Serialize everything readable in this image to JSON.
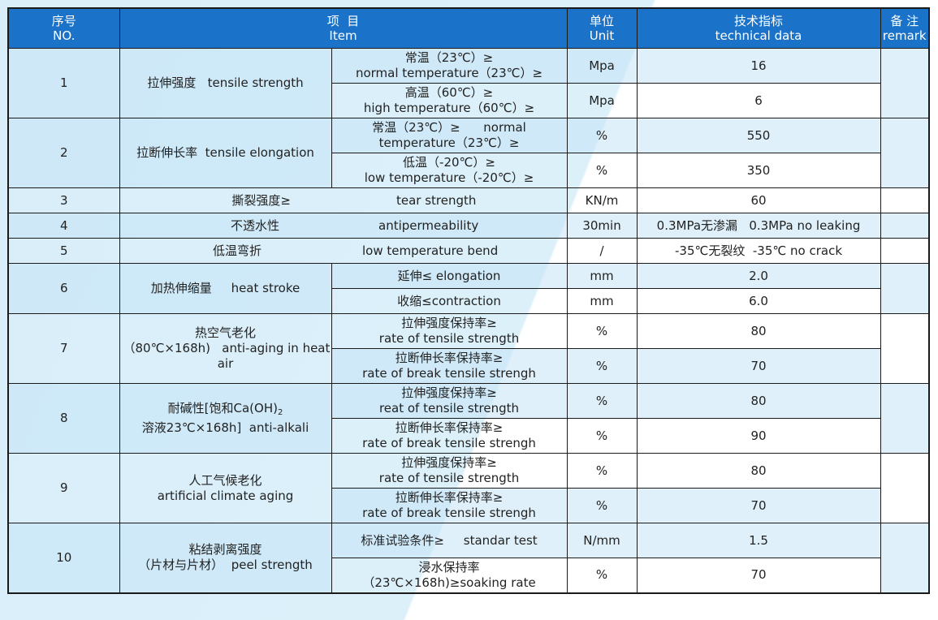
{
  "header": {
    "no_cn": "序号",
    "no_en": "NO.",
    "item_cn": "项  目",
    "item_en": "Item",
    "unit_cn": "单位",
    "unit_en": "Unit",
    "tech_cn": "技术指标",
    "tech_en": "technical data",
    "remark_cn": "备 注",
    "remark_en": "remark"
  },
  "rows": [
    {
      "no": "1",
      "item": "拉伸强度   tensile strength",
      "sub1": "常温（23℃）≥",
      "sub1b": "normal temperature（23℃）≥",
      "unit1": "Mpa",
      "val1": "16",
      "sub2": "高温（60℃）≥",
      "sub2b": "high temperature（60℃）≥",
      "unit2": "Mpa",
      "val2": "6"
    },
    {
      "no": "2",
      "item": "拉断伸长率  tensile elongation",
      "sub1": "常温（23℃）≥      normal",
      "sub1b": "temperature（23℃）≥",
      "unit1": "%",
      "val1": "550",
      "sub2": "低温（-20℃）≥",
      "sub2b": "low temperature（-20℃）≥",
      "unit2": "%",
      "val2": "350"
    },
    {
      "no": "3",
      "item_cn": "撕裂强度≥",
      "item_en": "tear strength",
      "unit": "KN/m",
      "val": "60"
    },
    {
      "no": "4",
      "item_cn": "不透水性",
      "item_en": "antipermeability",
      "unit": "30min",
      "val": "0.3MPa无渗漏   0.3MPa no leaking"
    },
    {
      "no": "5",
      "item_cn": "低温弯折",
      "item_en": "low temperature bend",
      "unit": "/",
      "val": "-35℃无裂纹  -35℃ no crack"
    },
    {
      "no": "6",
      "item": "加热伸缩量     heat stroke",
      "sub1": "延伸≤ elongation",
      "unit1": "mm",
      "val1": "2.0",
      "sub2": "收缩≤contraction",
      "unit2": "mm",
      "val2": "6.0"
    },
    {
      "no": "7",
      "item_l1": "热空气老化",
      "item_l2": "（80℃×168h)   anti-aging in heat",
      "item_l3": "air",
      "sub1": "拉伸强度保持率≥",
      "sub1b": "rate of tensile strength",
      "unit1": "%",
      "val1": "80",
      "sub2": "拉断伸长率保持率≥",
      "sub2b": "rate of break tensile strengh",
      "unit2": "%",
      "val2": "70"
    },
    {
      "no": "8",
      "item_l1": "耐碱性[饱和Ca(OH)",
      "item_l1_sub": "2",
      "item_l2": "溶液23℃×168h]  anti-alkali",
      "sub1": "拉伸强度保持率≥",
      "sub1b": "reat of tensile strength",
      "unit1": "%",
      "val1": "80",
      "sub2": "拉断伸长率保持率≥",
      "sub2b": "rate of break tensile strengh",
      "unit2": "%",
      "val2": "90"
    },
    {
      "no": "9",
      "item_l1": "人工气候老化",
      "item_l2": "artificial climate aging",
      "sub1": "拉伸强度保持率≥",
      "sub1b": "rate of tensile strength",
      "unit1": "%",
      "val1": "80",
      "sub2": "拉断伸长率保持率≥",
      "sub2b": "rate of break tensile strengh",
      "unit2": "%",
      "val2": "70"
    },
    {
      "no": "10",
      "item_l1": "粘结剥离强度",
      "item_l2": "（片材与片材）  peel strength",
      "sub1": "标准试验条件≥     standar test",
      "unit1": "N/mm",
      "val1": "1.5",
      "sub2": "浸水保持率",
      "sub2b": "（23℃×168h)≥soaking rate",
      "unit2": "%",
      "val2": "70"
    }
  ],
  "colors": {
    "header_bg": "#1a73c8",
    "row_shade": "#c4e4f6",
    "page_bg": "#d9eef9"
  }
}
